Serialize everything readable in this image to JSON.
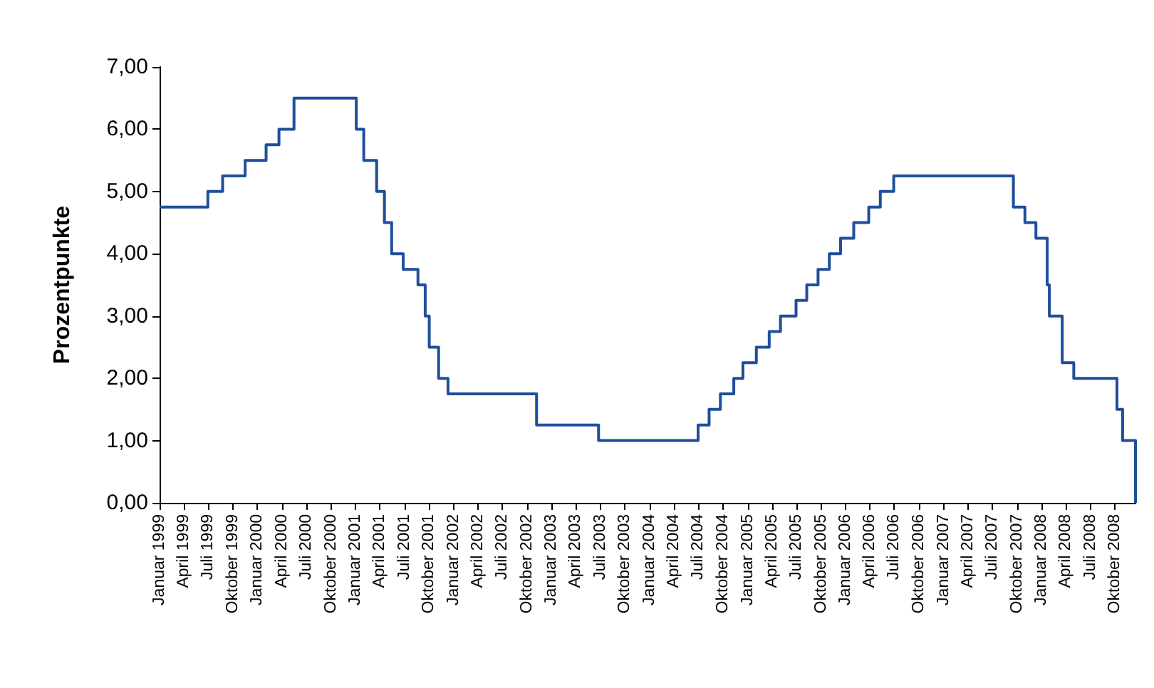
{
  "chart_data": {
    "type": "step",
    "ylabel": "Prozentpunkte",
    "grid": false,
    "marker": "none",
    "line_style": "solid",
    "x": [
      "1999-01-01",
      "1999-06-30",
      "1999-08-24",
      "1999-11-16",
      "2000-02-02",
      "2000-03-21",
      "2000-05-16",
      "2001-01-03",
      "2001-01-31",
      "2001-03-20",
      "2001-04-18",
      "2001-05-15",
      "2001-06-27",
      "2001-08-21",
      "2001-09-17",
      "2001-10-02",
      "2001-11-06",
      "2001-12-11",
      "2002-11-06",
      "2003-06-25",
      "2004-06-30",
      "2004-08-10",
      "2004-09-21",
      "2004-11-10",
      "2004-12-14",
      "2005-02-02",
      "2005-03-22",
      "2005-05-03",
      "2005-06-30",
      "2005-08-09",
      "2005-09-20",
      "2005-11-01",
      "2005-12-13",
      "2006-01-31",
      "2006-03-28",
      "2006-05-10",
      "2006-06-29",
      "2007-09-18",
      "2007-10-31",
      "2007-12-11",
      "2008-01-22",
      "2008-01-30",
      "2008-03-18",
      "2008-04-30",
      "2008-10-08",
      "2008-10-29",
      "2008-12-16"
    ],
    "series": [
      {
        "color": "#1f4e9c",
        "values": [
          4.75,
          5.0,
          5.25,
          5.5,
          5.75,
          6.0,
          6.5,
          6.0,
          5.5,
          5.0,
          4.5,
          4.0,
          3.75,
          3.5,
          3.0,
          2.5,
          2.0,
          1.75,
          1.25,
          1.0,
          1.25,
          1.5,
          1.75,
          2.0,
          2.25,
          2.5,
          2.75,
          3.0,
          3.25,
          3.5,
          3.75,
          4.0,
          4.25,
          4.5,
          4.75,
          5.0,
          5.25,
          4.75,
          4.5,
          4.25,
          3.5,
          3.0,
          2.25,
          2.0,
          1.5,
          1.0,
          0.0
        ]
      }
    ],
    "ylim": [
      0,
      7
    ],
    "yticks": [
      {
        "value": 0,
        "label": "0,00"
      },
      {
        "value": 1,
        "label": "1,00"
      },
      {
        "value": 2,
        "label": "2,00"
      },
      {
        "value": 3,
        "label": "3,00"
      },
      {
        "value": 4,
        "label": "4,00"
      },
      {
        "value": 5,
        "label": "5,00"
      },
      {
        "value": 6,
        "label": "6,00"
      },
      {
        "value": 7,
        "label": "7,00"
      }
    ],
    "xlim": [
      "1999-01-01",
      "2008-12-16"
    ],
    "xticks": [
      {
        "value": "1999-01-01",
        "label": "Januar 1999"
      },
      {
        "value": "1999-04-01",
        "label": "April 1999"
      },
      {
        "value": "1999-07-01",
        "label": "Juli 1999"
      },
      {
        "value": "1999-10-01",
        "label": "Oktober 1999"
      },
      {
        "value": "2000-01-01",
        "label": "Januar 2000"
      },
      {
        "value": "2000-04-01",
        "label": "April 2000"
      },
      {
        "value": "2000-07-01",
        "label": "Juli 2000"
      },
      {
        "value": "2000-10-01",
        "label": "Oktober 2000"
      },
      {
        "value": "2001-01-01",
        "label": "Januar 2001"
      },
      {
        "value": "2001-04-01",
        "label": "April 2001"
      },
      {
        "value": "2001-07-01",
        "label": "Juli 2001"
      },
      {
        "value": "2001-10-01",
        "label": "Oktober 2001"
      },
      {
        "value": "2002-01-01",
        "label": "Januar 2002"
      },
      {
        "value": "2002-04-01",
        "label": "April 2002"
      },
      {
        "value": "2002-07-01",
        "label": "Juli 2002"
      },
      {
        "value": "2002-10-01",
        "label": "Oktober 2002"
      },
      {
        "value": "2003-01-01",
        "label": "Januar 2003"
      },
      {
        "value": "2003-04-01",
        "label": "April 2003"
      },
      {
        "value": "2003-07-01",
        "label": "Juli 2003"
      },
      {
        "value": "2003-10-01",
        "label": "Oktober 2003"
      },
      {
        "value": "2004-01-01",
        "label": "Januar 2004"
      },
      {
        "value": "2004-04-01",
        "label": "April 2004"
      },
      {
        "value": "2004-07-01",
        "label": "Juli 2004"
      },
      {
        "value": "2004-10-01",
        "label": "Oktober 2004"
      },
      {
        "value": "2005-01-01",
        "label": "Januar 2005"
      },
      {
        "value": "2005-04-01",
        "label": "April 2005"
      },
      {
        "value": "2005-07-01",
        "label": "Juli 2005"
      },
      {
        "value": "2005-10-01",
        "label": "Oktober 2005"
      },
      {
        "value": "2006-01-01",
        "label": "Januar 2006"
      },
      {
        "value": "2006-04-01",
        "label": "April 2006"
      },
      {
        "value": "2006-07-01",
        "label": "Juli 2006"
      },
      {
        "value": "2006-10-01",
        "label": "Oktober 2006"
      },
      {
        "value": "2007-01-01",
        "label": "Januar 2007"
      },
      {
        "value": "2007-04-01",
        "label": "April 2007"
      },
      {
        "value": "2007-07-01",
        "label": "Juli 2007"
      },
      {
        "value": "2007-10-01",
        "label": "Oktober 2007"
      },
      {
        "value": "2008-01-01",
        "label": "Januar 2008"
      },
      {
        "value": "2008-04-01",
        "label": "April 2008"
      },
      {
        "value": "2008-07-01",
        "label": "Juli 2008"
      },
      {
        "value": "2008-10-01",
        "label": "Oktober 2008"
      }
    ]
  }
}
